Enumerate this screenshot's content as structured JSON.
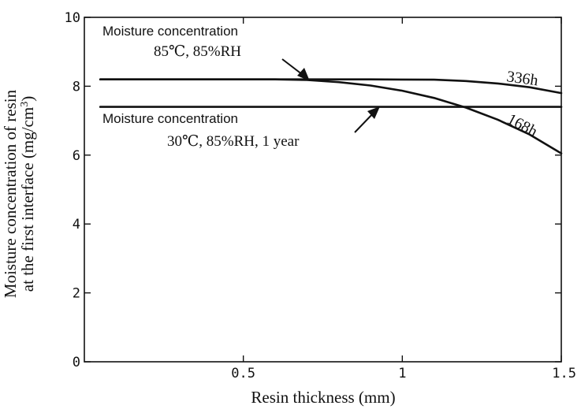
{
  "chart_data": {
    "type": "line",
    "title": "",
    "xlabel": "Resin thickness  (mm)",
    "ylabel_line1": "Moisture concentration of resin",
    "ylabel_line2": "at the first interface  (mg/cm",
    "ylabel_sup": "3",
    "ylabel_close": ")",
    "xlim": [
      0,
      1.5
    ],
    "ylim": [
      0,
      10
    ],
    "x_ticks": [
      0.5,
      1,
      1.5
    ],
    "x_tick_labels": [
      "0.5",
      "1",
      "1.5"
    ],
    "y_ticks": [
      0,
      2,
      4,
      6,
      8,
      10
    ],
    "y_tick_labels": [
      "0",
      "2",
      "4",
      "6",
      "8",
      "10"
    ],
    "grid": false,
    "series": [
      {
        "name": "336h",
        "x": [
          0.05,
          0.3,
          0.6,
          0.9,
          1.1,
          1.2,
          1.3,
          1.4,
          1.5
        ],
        "y": [
          8.2,
          8.2,
          8.2,
          8.2,
          8.19,
          8.15,
          8.08,
          7.97,
          7.8
        ]
      },
      {
        "name": "168h",
        "x": [
          0.05,
          0.3,
          0.6,
          0.7,
          0.8,
          0.9,
          1.0,
          1.1,
          1.2,
          1.3,
          1.4,
          1.5
        ],
        "y": [
          8.2,
          8.2,
          8.2,
          8.18,
          8.12,
          8.02,
          7.87,
          7.66,
          7.38,
          7.03,
          6.6,
          6.05
        ]
      },
      {
        "name": "",
        "x": [
          0.05,
          1.5
        ],
        "y": [
          7.4,
          7.4
        ]
      }
    ],
    "annotations": {
      "top_line1": "Moisture concentration",
      "top_line2": "85℃, 85%RH",
      "bottom_line1": "Moisture concentration",
      "bottom_line2": "30℃, 85%RH,  1 year"
    }
  }
}
